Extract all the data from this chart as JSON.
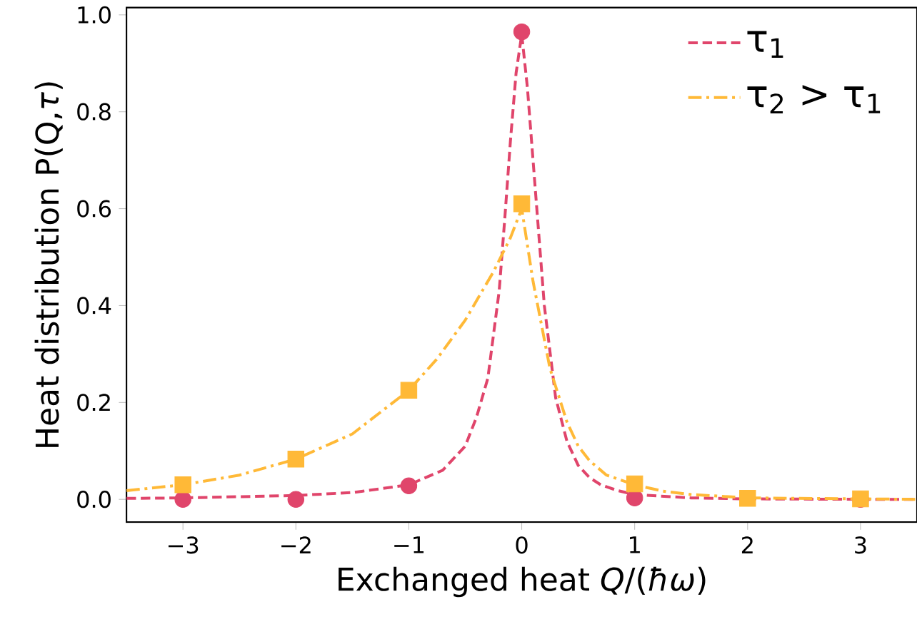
{
  "chart_data": {
    "type": "line",
    "xlabel": "Exchanged heat *Q*/(*ħω*)",
    "ylabel": "Heat distribution P(Q,*τ*)",
    "xlim": [
      -3.5,
      3.5
    ],
    "ylim": [
      -0.047,
      1.015
    ],
    "xticks": [
      {
        "value": -3,
        "label": "−3"
      },
      {
        "value": -2,
        "label": "−2"
      },
      {
        "value": -1,
        "label": "−1"
      },
      0,
      1,
      2,
      3
    ],
    "yticks": [
      {
        "value": 0,
        "label": "0.0"
      },
      {
        "value": 0.2,
        "label": "0.2"
      },
      {
        "value": 0.4,
        "label": "0.4"
      },
      {
        "value": 0.6,
        "label": "0.6"
      },
      {
        "value": 0.8,
        "label": "0.8"
      },
      {
        "value": 1,
        "label": "1.0"
      }
    ],
    "legend": "top right",
    "grid": false,
    "series": [
      {
        "name": "τ$_{1}$",
        "color": "#e0456b",
        "line_style": "dashed",
        "marker": "none",
        "x": [
          -3.5,
          -3,
          -2,
          -1.5,
          -1,
          -0.7,
          -0.5,
          -0.4,
          -0.3,
          -0.2,
          -0.15,
          -0.1,
          -0.05,
          0,
          0.05,
          0.1,
          0.15,
          0.2,
          0.3,
          0.4,
          0.5,
          0.6,
          0.7,
          0.85,
          1,
          1.5,
          2,
          3,
          3.5
        ],
        "values": [
          0.002,
          0.003,
          0.008,
          0.014,
          0.03,
          0.06,
          0.11,
          0.17,
          0.25,
          0.43,
          0.58,
          0.74,
          0.88,
          0.96,
          0.85,
          0.7,
          0.55,
          0.4,
          0.21,
          0.12,
          0.07,
          0.045,
          0.03,
          0.018,
          0.01,
          0.003,
          0.001,
          0,
          0
        ]
      },
      {
        "name": "τ$_{2}$ > τ$_{1}$",
        "color": "#ffb937",
        "line_style": "dashdot",
        "marker": "none",
        "x": [
          -3.5,
          -3,
          -2.5,
          -2,
          -1.5,
          -1,
          -0.75,
          -0.5,
          -0.25,
          -0.1,
          0,
          0.1,
          0.25,
          0.4,
          0.5,
          0.6,
          0.75,
          1,
          1.25,
          1.5,
          2,
          3,
          3.5
        ],
        "values": [
          0.018,
          0.03,
          0.05,
          0.083,
          0.135,
          0.225,
          0.29,
          0.37,
          0.47,
          0.54,
          0.6,
          0.45,
          0.27,
          0.16,
          0.11,
          0.08,
          0.05,
          0.03,
          0.017,
          0.01,
          0.003,
          0.001,
          0
        ]
      },
      {
        "type": "scatter",
        "color": "#e0456b",
        "marker": "circle",
        "x": [
          -3,
          -2,
          -1,
          0,
          1,
          2,
          3
        ],
        "values": [
          0,
          0,
          0.028,
          0.965,
          0.003,
          null,
          0
        ]
      },
      {
        "type": "scatter",
        "color": "#ffb937",
        "marker": "square",
        "x": [
          -3,
          -2,
          -1,
          0,
          1,
          2,
          3
        ],
        "values": [
          0.03,
          0.083,
          0.225,
          0.61,
          0.032,
          0.002,
          0.001
        ]
      }
    ]
  }
}
